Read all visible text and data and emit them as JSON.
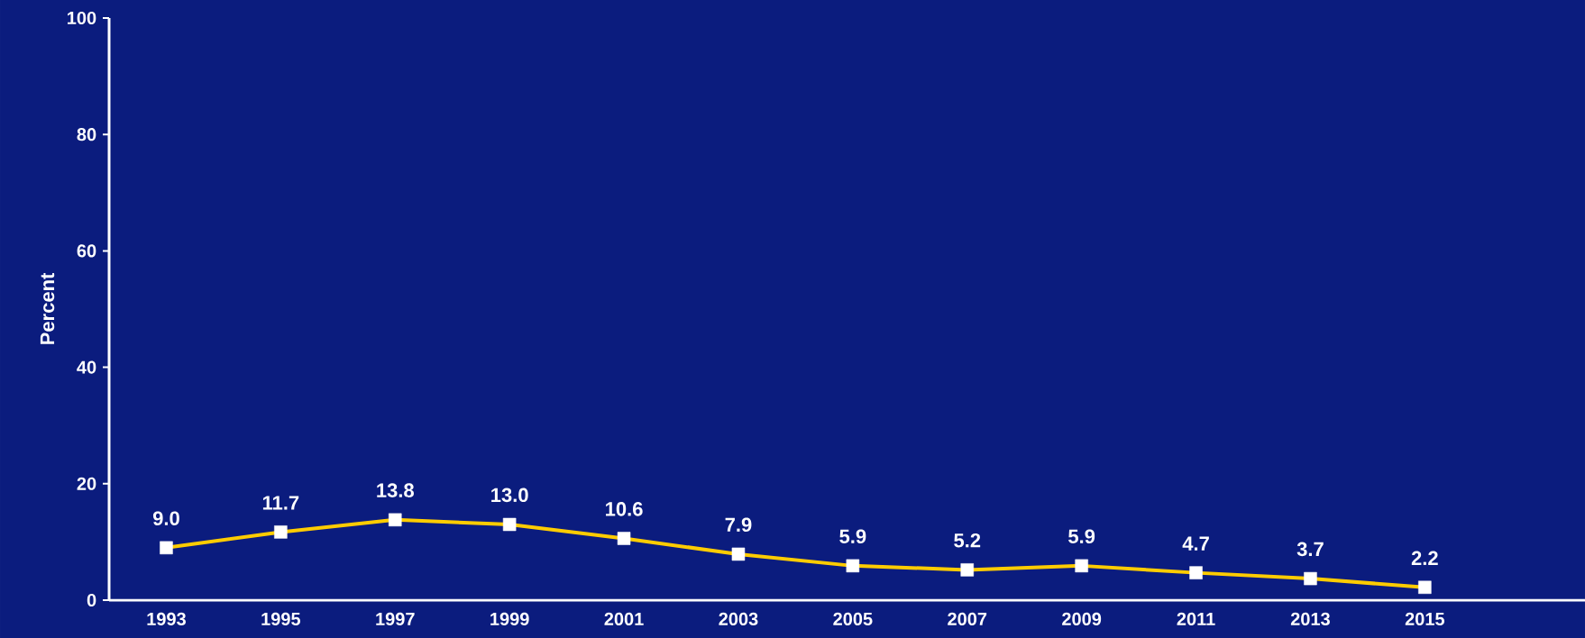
{
  "chart_data": {
    "type": "line",
    "ylabel": "Percent",
    "categories": [
      "1993",
      "1995",
      "1997",
      "1999",
      "2001",
      "2003",
      "2005",
      "2007",
      "2009",
      "2011",
      "2013",
      "2015"
    ],
    "series": [
      {
        "color": "#ffcc00",
        "values": [
          9.0,
          11.7,
          13.8,
          13.0,
          10.6,
          7.9,
          5.9,
          5.2,
          5.9,
          4.7,
          3.7,
          2.2
        ],
        "value_labels": [
          "9.0",
          "11.7",
          "13.8",
          "13.0",
          "10.6",
          "7.9",
          "5.9",
          "5.2",
          "5.9",
          "4.7",
          "3.7",
          "2.2"
        ]
      }
    ],
    "ylim": [
      0,
      100
    ],
    "yticks": [
      0,
      20,
      40,
      60,
      80,
      100
    ],
    "marker": "square"
  }
}
